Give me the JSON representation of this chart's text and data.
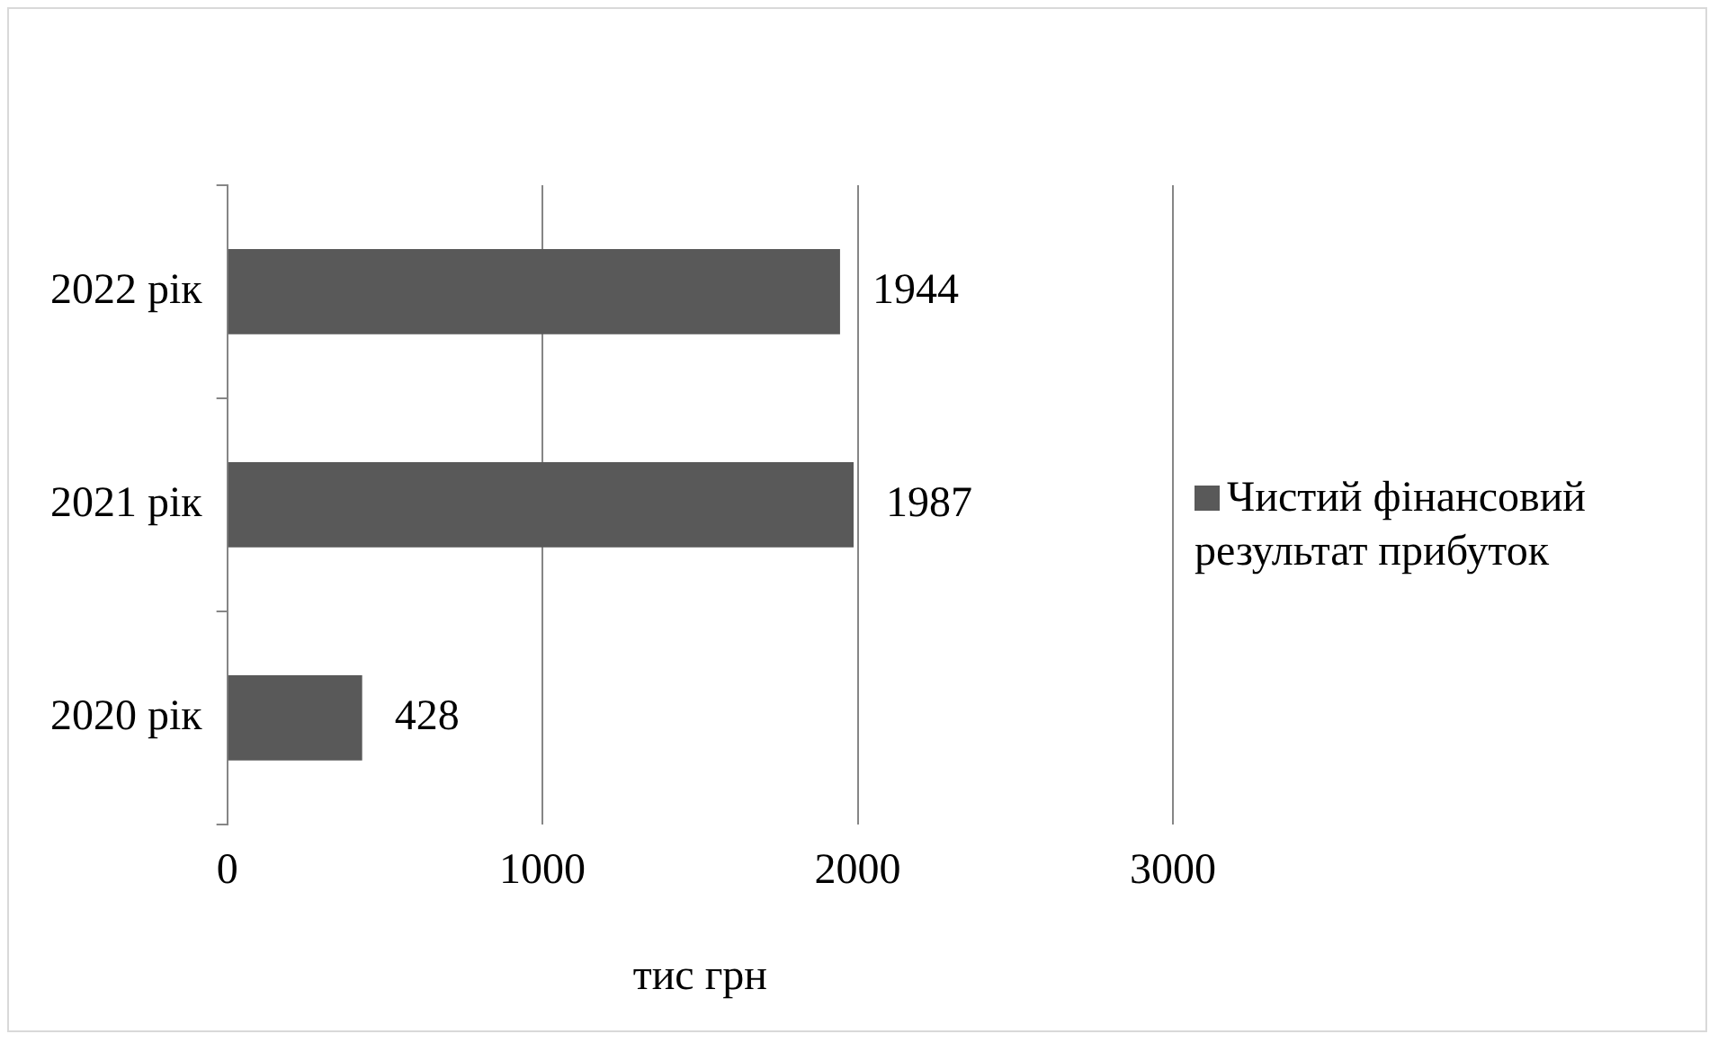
{
  "chart_data": {
    "type": "bar",
    "orientation": "horizontal",
    "xlabel": "тис грн",
    "categories": [
      "2022 рік",
      "2021 рік",
      "2020 рік"
    ],
    "series": [
      {
        "name": "Чистий фінансовий результат прибуток",
        "color": "#595959",
        "values": [
          1944,
          1987,
          428
        ]
      }
    ],
    "xlim": [
      0,
      3000
    ],
    "xticks": [
      0,
      1000,
      2000,
      3000
    ],
    "grid": "x",
    "legend": "right",
    "data_labels": true
  }
}
